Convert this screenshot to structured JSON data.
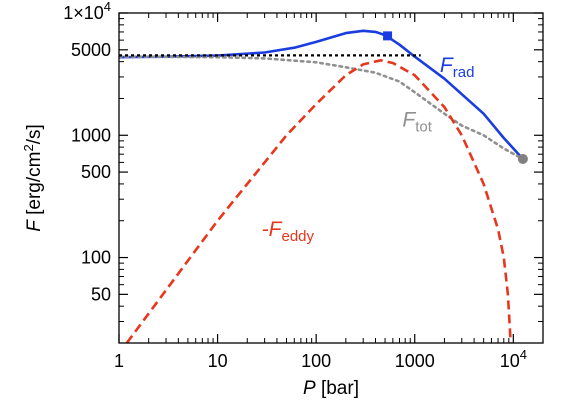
{
  "chart_data": {
    "type": "line",
    "xlabel": {
      "symbol": "P",
      "unit": "[bar]"
    },
    "ylabel": {
      "symbol": "F",
      "unit": "[erg/cm",
      "unit_sup": "2",
      "unit_end": "/s]"
    },
    "x_scale": "log",
    "y_scale": "log",
    "xlim": [
      1,
      20000
    ],
    "ylim": [
      20,
      10000
    ],
    "x_ticks": [
      {
        "value": 1,
        "label": "1"
      },
      {
        "value": 10,
        "label": "10"
      },
      {
        "value": 100,
        "label": "100"
      },
      {
        "value": 1000,
        "label": "1000"
      },
      {
        "value": 10000,
        "label": "10",
        "sup": "4"
      }
    ],
    "y_ticks": [
      {
        "value": 50,
        "label": "50"
      },
      {
        "value": 100,
        "label": "100"
      },
      {
        "value": 500,
        "label": "500"
      },
      {
        "value": 1000,
        "label": "1000"
      },
      {
        "value": 5000,
        "label": "5000"
      },
      {
        "value": 10000,
        "label": "1×10",
        "sup": "4"
      }
    ],
    "series": [
      {
        "name": "F",
        "subscript": "rad",
        "color": "#1a3de0",
        "style": "solid",
        "points": [
          [
            1,
            4350
          ],
          [
            3,
            4390
          ],
          [
            10,
            4480
          ],
          [
            30,
            4750
          ],
          [
            60,
            5200
          ],
          [
            100,
            5800
          ],
          [
            150,
            6400
          ],
          [
            200,
            6850
          ],
          [
            300,
            7150
          ],
          [
            400,
            7000
          ],
          [
            500,
            6600
          ],
          [
            700,
            5500
          ],
          [
            1000,
            4400
          ],
          [
            2000,
            2900
          ],
          [
            5000,
            1500
          ],
          [
            8000,
            950
          ],
          [
            12500,
            640
          ]
        ]
      },
      {
        "name": "F",
        "subscript": "tot",
        "color": "#909090",
        "style": "dotted",
        "points": [
          [
            1,
            4400
          ],
          [
            10,
            4350
          ],
          [
            30,
            4250
          ],
          [
            100,
            3950
          ],
          [
            200,
            3600
          ],
          [
            400,
            3250
          ],
          [
            700,
            2750
          ],
          [
            1000,
            2250
          ],
          [
            2000,
            1500
          ],
          [
            3000,
            1200
          ],
          [
            5000,
            1000
          ],
          [
            8000,
            780
          ],
          [
            12500,
            640
          ]
        ]
      },
      {
        "name": "-F",
        "subscript": "eddy",
        "color": "#e8361c",
        "style": "dashed",
        "points": [
          [
            1.2,
            20
          ],
          [
            10,
            200
          ],
          [
            50,
            1000
          ],
          [
            100,
            1800
          ],
          [
            200,
            3100
          ],
          [
            300,
            3800
          ],
          [
            450,
            4100
          ],
          [
            600,
            3900
          ],
          [
            1000,
            3100
          ],
          [
            2000,
            1700
          ],
          [
            3000,
            1000
          ],
          [
            5000,
            400
          ],
          [
            7000,
            170
          ],
          [
            8000,
            100
          ],
          [
            8800,
            50
          ],
          [
            9400,
            20
          ]
        ]
      },
      {
        "name": "",
        "color": "#000000",
        "style": "dotted",
        "points": [
          [
            1,
            4500
          ],
          [
            1150,
            4500
          ]
        ]
      }
    ],
    "markers": [
      {
        "shape": "square",
        "color": "#1a3de0",
        "x": 530,
        "y": 6500
      },
      {
        "shape": "circle",
        "color": "#808080",
        "x": 12500,
        "y": 640
      }
    ],
    "labels": [
      {
        "series": 0,
        "x": 1800,
        "y": 3300
      },
      {
        "series": 1,
        "x": 750,
        "y": 1180
      },
      {
        "series": 2,
        "x": 28,
        "y": 150
      }
    ]
  }
}
